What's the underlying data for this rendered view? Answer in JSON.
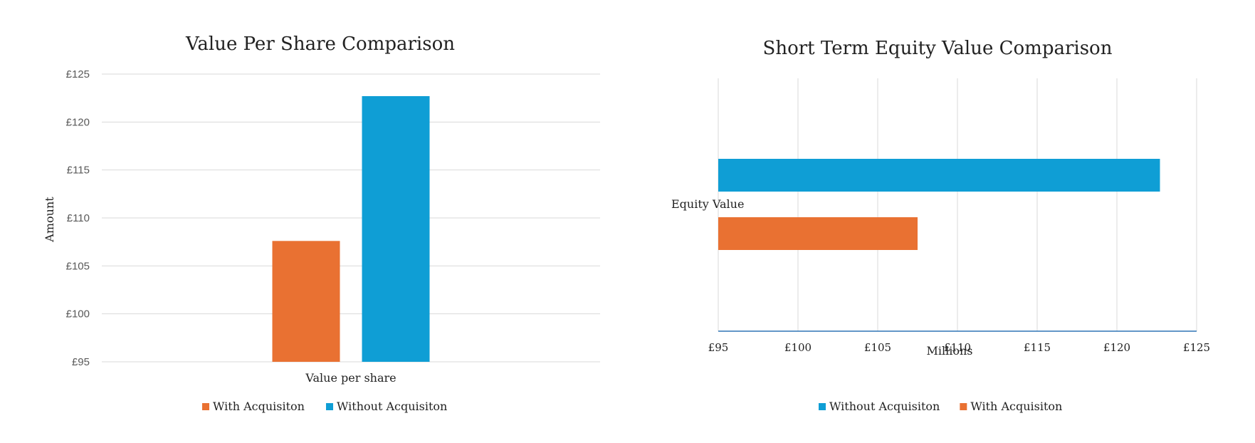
{
  "colors": {
    "orange": "#E97132",
    "blue": "#0F9ED5",
    "grid": "#D9D9D9",
    "axis_line": "#2E75B6"
  },
  "chart_data": [
    {
      "type": "bar",
      "orientation": "vertical",
      "title": "Value Per Share Comparison",
      "ylabel": "Amount",
      "categories": [
        "Value per share"
      ],
      "ylim": [
        95,
        125
      ],
      "ytick_labels": [
        "£95",
        "£100",
        "£105",
        "£110",
        "£115",
        "£120",
        "£125"
      ],
      "series": [
        {
          "name": "With Acquisiton",
          "color": "#E97132",
          "values": [
            107.6
          ]
        },
        {
          "name": "Without Acquisiton",
          "color": "#0F9ED5",
          "values": [
            122.7
          ]
        }
      ],
      "legend": [
        "With Acquisiton",
        "Without Acquisiton"
      ],
      "legend_position": "bottom",
      "grid": true
    },
    {
      "type": "bar",
      "orientation": "horizontal",
      "title": "Short Term Equity Value Comparison",
      "xlabel": "Millions",
      "categories": [
        "Equity Value"
      ],
      "xlim": [
        95,
        125
      ],
      "xtick_labels": [
        "£95",
        "£100",
        "£105",
        "£110",
        "£115",
        "£120",
        "£125"
      ],
      "series": [
        {
          "name": "With Acquisiton",
          "color": "#E97132",
          "values": [
            107.5
          ]
        },
        {
          "name": "Without Acquisiton",
          "color": "#0F9ED5",
          "values": [
            122.7
          ]
        }
      ],
      "legend": [
        "Without Acquisiton",
        "With Acquisiton"
      ],
      "legend_position": "bottom",
      "grid": true
    }
  ]
}
